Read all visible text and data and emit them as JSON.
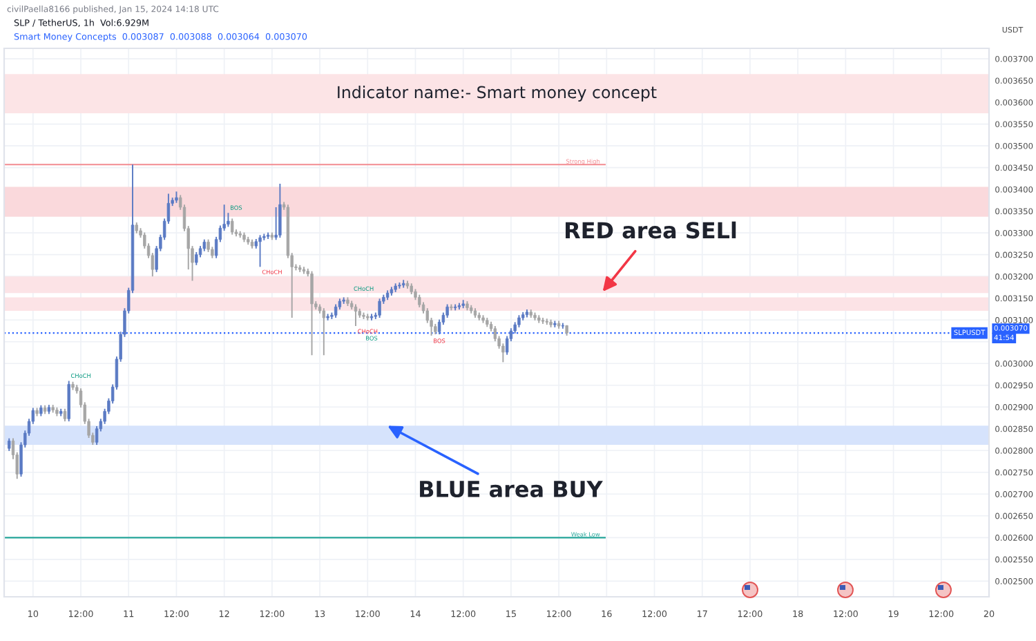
{
  "chart_data": {
    "type": "candlestick",
    "title": "SLP / TetherUS, 1h  Vol:6.929M",
    "subtitle": "Smart Money Concepts  0.003087  0.003088  0.003064  0.003070",
    "ylabel": "USDT",
    "x": [
      "2024-01-09T18:00",
      "2024-01-09T19:00",
      "2024-01-09T20:00",
      "2024-01-09T21:00",
      "2024-01-09T22:00",
      "2024-01-09T23:00",
      "2024-01-10T00:00",
      "2024-01-10T01:00",
      "2024-01-10T02:00",
      "2024-01-10T03:00",
      "2024-01-10T04:00",
      "2024-01-10T05:00",
      "2024-01-10T06:00",
      "2024-01-10T07:00",
      "2024-01-10T08:00",
      "2024-01-10T09:00",
      "2024-01-10T10:00",
      "2024-01-10T11:00",
      "2024-01-10T12:00",
      "2024-01-10T13:00",
      "2024-01-10T14:00",
      "2024-01-10T15:00",
      "2024-01-10T16:00",
      "2024-01-10T17:00",
      "2024-01-10T18:00",
      "2024-01-10T19:00",
      "2024-01-10T20:00",
      "2024-01-10T21:00",
      "2024-01-10T22:00",
      "2024-01-10T23:00",
      "2024-01-11T00:00",
      "2024-01-11T01:00",
      "2024-01-11T02:00",
      "2024-01-11T03:00",
      "2024-01-11T04:00",
      "2024-01-11T05:00",
      "2024-01-11T06:00",
      "2024-01-11T07:00",
      "2024-01-11T08:00",
      "2024-01-11T09:00",
      "2024-01-11T10:00",
      "2024-01-11T11:00",
      "2024-01-11T12:00",
      "2024-01-11T13:00",
      "2024-01-11T14:00",
      "2024-01-11T15:00",
      "2024-01-11T16:00",
      "2024-01-11T17:00",
      "2024-01-11T18:00",
      "2024-01-11T19:00",
      "2024-01-11T20:00",
      "2024-01-11T21:00",
      "2024-01-11T22:00",
      "2024-01-11T23:00",
      "2024-01-12T00:00",
      "2024-01-12T01:00",
      "2024-01-12T02:00",
      "2024-01-12T03:00",
      "2024-01-12T04:00",
      "2024-01-12T05:00",
      "2024-01-12T06:00",
      "2024-01-12T07:00",
      "2024-01-12T08:00",
      "2024-01-12T09:00",
      "2024-01-12T10:00",
      "2024-01-12T11:00",
      "2024-01-12T12:00",
      "2024-01-12T13:00",
      "2024-01-12T14:00",
      "2024-01-12T15:00",
      "2024-01-12T16:00",
      "2024-01-12T17:00",
      "2024-01-12T18:00",
      "2024-01-12T19:00",
      "2024-01-12T20:00",
      "2024-01-12T21:00",
      "2024-01-12T22:00",
      "2024-01-12T23:00",
      "2024-01-13T00:00",
      "2024-01-13T01:00",
      "2024-01-13T02:00",
      "2024-01-13T03:00",
      "2024-01-13T04:00",
      "2024-01-13T05:00",
      "2024-01-13T06:00",
      "2024-01-13T07:00",
      "2024-01-13T08:00",
      "2024-01-13T09:00",
      "2024-01-13T10:00",
      "2024-01-13T11:00",
      "2024-01-13T12:00",
      "2024-01-13T13:00",
      "2024-01-13T14:00",
      "2024-01-13T15:00",
      "2024-01-13T16:00",
      "2024-01-13T17:00",
      "2024-01-13T18:00",
      "2024-01-13T19:00",
      "2024-01-13T20:00",
      "2024-01-13T21:00",
      "2024-01-13T22:00",
      "2024-01-13T23:00",
      "2024-01-14T00:00",
      "2024-01-14T01:00",
      "2024-01-14T02:00",
      "2024-01-14T03:00",
      "2024-01-14T04:00",
      "2024-01-14T05:00",
      "2024-01-14T06:00",
      "2024-01-14T07:00",
      "2024-01-14T08:00",
      "2024-01-14T09:00",
      "2024-01-14T10:00",
      "2024-01-14T11:00",
      "2024-01-14T12:00",
      "2024-01-14T13:00",
      "2024-01-14T14:00",
      "2024-01-14T15:00",
      "2024-01-14T16:00",
      "2024-01-14T17:00",
      "2024-01-14T18:00",
      "2024-01-14T19:00",
      "2024-01-14T20:00",
      "2024-01-14T21:00",
      "2024-01-14T22:00",
      "2024-01-14T23:00",
      "2024-01-15T00:00",
      "2024-01-15T01:00",
      "2024-01-15T02:00",
      "2024-01-15T03:00",
      "2024-01-15T04:00",
      "2024-01-15T05:00",
      "2024-01-15T06:00",
      "2024-01-15T07:00",
      "2024-01-15T08:00",
      "2024-01-15T09:00",
      "2024-01-15T10:00",
      "2024-01-15T11:00",
      "2024-01-15T12:00",
      "2024-01-15T13:00",
      "2024-01-15T14:00"
    ],
    "ohlc": [
      [
        0.002805,
        0.002828,
        0.002799,
        0.002822
      ],
      [
        0.002822,
        0.002828,
        0.00278,
        0.00279
      ],
      [
        0.00279,
        0.002796,
        0.002735,
        0.002746
      ],
      [
        0.002746,
        0.002819,
        0.00274,
        0.002813
      ],
      [
        0.002813,
        0.002846,
        0.002807,
        0.00284
      ],
      [
        0.00284,
        0.002873,
        0.002834,
        0.002867
      ],
      [
        0.002867,
        0.002898,
        0.002861,
        0.002892
      ],
      [
        0.002892,
        0.002898,
        0.002879,
        0.002885
      ],
      [
        0.002885,
        0.002904,
        0.002879,
        0.002898
      ],
      [
        0.002898,
        0.002904,
        0.002884,
        0.00289
      ],
      [
        0.00289,
        0.002905,
        0.002884,
        0.002899
      ],
      [
        0.002899,
        0.002905,
        0.002887,
        0.002893
      ],
      [
        0.002893,
        0.002899,
        0.002879,
        0.002885
      ],
      [
        0.002885,
        0.002896,
        0.002879,
        0.00289
      ],
      [
        0.00289,
        0.002896,
        0.002867,
        0.002873
      ],
      [
        0.002873,
        0.00296,
        0.002867,
        0.002952
      ],
      [
        0.002952,
        0.002958,
        0.002939,
        0.002945
      ],
      [
        0.002945,
        0.002951,
        0.002931,
        0.002937
      ],
      [
        0.002937,
        0.002943,
        0.002899,
        0.002905
      ],
      [
        0.002905,
        0.002911,
        0.002861,
        0.002867
      ],
      [
        0.002867,
        0.002873,
        0.002829,
        0.002835
      ],
      [
        0.002835,
        0.002841,
        0.002813,
        0.002819
      ],
      [
        0.002819,
        0.002856,
        0.002813,
        0.00285
      ],
      [
        0.00285,
        0.002873,
        0.002844,
        0.002867
      ],
      [
        0.002867,
        0.002896,
        0.002861,
        0.00289
      ],
      [
        0.00289,
        0.00292,
        0.002884,
        0.002914
      ],
      [
        0.002914,
        0.002952,
        0.002908,
        0.002946
      ],
      [
        0.002946,
        0.003016,
        0.00294,
        0.00301
      ],
      [
        0.00301,
        0.003073,
        0.003004,
        0.003067
      ],
      [
        0.003067,
        0.003127,
        0.003061,
        0.003121
      ],
      [
        0.003121,
        0.003174,
        0.003115,
        0.003168
      ],
      [
        0.003168,
        0.003457,
        0.003162,
        0.003318
      ],
      [
        0.003318,
        0.003324,
        0.003299,
        0.003305
      ],
      [
        0.003305,
        0.003311,
        0.003289,
        0.003295
      ],
      [
        0.003295,
        0.003301,
        0.003264,
        0.00327
      ],
      [
        0.00327,
        0.003276,
        0.003242,
        0.003248
      ],
      [
        0.003248,
        0.003254,
        0.0032,
        0.003216
      ],
      [
        0.003216,
        0.00327,
        0.00321,
        0.003264
      ],
      [
        0.003264,
        0.003296,
        0.003258,
        0.00329
      ],
      [
        0.00329,
        0.003333,
        0.003284,
        0.003327
      ],
      [
        0.003327,
        0.00339,
        0.003321,
        0.003368
      ],
      [
        0.003368,
        0.003381,
        0.003362,
        0.003375
      ],
      [
        0.003375,
        0.003395,
        0.003369,
        0.003381
      ],
      [
        0.003381,
        0.003387,
        0.003353,
        0.003359
      ],
      [
        0.003359,
        0.003365,
        0.003304,
        0.00331
      ],
      [
        0.00331,
        0.003316,
        0.003216,
        0.003264
      ],
      [
        0.003264,
        0.00327,
        0.00319,
        0.003232
      ],
      [
        0.003232,
        0.003256,
        0.003226,
        0.00325
      ],
      [
        0.00325,
        0.00327,
        0.003244,
        0.003264
      ],
      [
        0.003264,
        0.003285,
        0.003258,
        0.003279
      ],
      [
        0.003279,
        0.003285,
        0.003256,
        0.003262
      ],
      [
        0.003262,
        0.003268,
        0.003242,
        0.003248
      ],
      [
        0.003248,
        0.003291,
        0.003242,
        0.003285
      ],
      [
        0.003285,
        0.003317,
        0.003279,
        0.003311
      ],
      [
        0.003311,
        0.003365,
        0.003305,
        0.00332
      ],
      [
        0.00332,
        0.003346,
        0.003314,
        0.003327
      ],
      [
        0.003327,
        0.003333,
        0.003296,
        0.003302
      ],
      [
        0.003302,
        0.003308,
        0.003292,
        0.003298
      ],
      [
        0.003298,
        0.003304,
        0.003289,
        0.003295
      ],
      [
        0.003295,
        0.003301,
        0.003279,
        0.003285
      ],
      [
        0.003285,
        0.003291,
        0.003273,
        0.003279
      ],
      [
        0.003279,
        0.003285,
        0.003264,
        0.00327
      ],
      [
        0.00327,
        0.003286,
        0.003264,
        0.00328
      ],
      [
        0.00328,
        0.003295,
        0.003222,
        0.003289
      ],
      [
        0.003289,
        0.003298,
        0.003283,
        0.003292
      ],
      [
        0.003292,
        0.003301,
        0.003286,
        0.003295
      ],
      [
        0.003295,
        0.003301,
        0.003284,
        0.00329
      ],
      [
        0.00329,
        0.003359,
        0.003284,
        0.003295
      ],
      [
        0.003295,
        0.003413,
        0.003289,
        0.003365
      ],
      [
        0.003365,
        0.003371,
        0.003353,
        0.003359
      ],
      [
        0.003359,
        0.003365,
        0.003242,
        0.003248
      ],
      [
        0.003248,
        0.003254,
        0.003105,
        0.003222
      ],
      [
        0.003222,
        0.003228,
        0.003214,
        0.00322
      ],
      [
        0.00322,
        0.003226,
        0.00321,
        0.003216
      ],
      [
        0.003216,
        0.003222,
        0.003206,
        0.003212
      ],
      [
        0.003212,
        0.003218,
        0.0032,
        0.003206
      ],
      [
        0.003206,
        0.003212,
        0.003019,
        0.003137
      ],
      [
        0.003137,
        0.003143,
        0.003124,
        0.00313
      ],
      [
        0.00313,
        0.003136,
        0.003115,
        0.003121
      ],
      [
        0.003121,
        0.003127,
        0.003019,
        0.003105
      ],
      [
        0.003105,
        0.003114,
        0.003099,
        0.003108
      ],
      [
        0.003108,
        0.003117,
        0.003102,
        0.003111
      ],
      [
        0.003111,
        0.003136,
        0.003105,
        0.00313
      ],
      [
        0.00313,
        0.003149,
        0.003124,
        0.003143
      ],
      [
        0.003143,
        0.003152,
        0.003137,
        0.003146
      ],
      [
        0.003146,
        0.003152,
        0.003132,
        0.003138
      ],
      [
        0.003138,
        0.003144,
        0.003124,
        0.00313
      ],
      [
        0.00313,
        0.003136,
        0.003086,
        0.00312
      ],
      [
        0.00312,
        0.003126,
        0.003105,
        0.003111
      ],
      [
        0.003111,
        0.003117,
        0.003102,
        0.003108
      ],
      [
        0.003108,
        0.003114,
        0.003099,
        0.003105
      ],
      [
        0.003105,
        0.003114,
        0.003099,
        0.003108
      ],
      [
        0.003108,
        0.003117,
        0.003102,
        0.003111
      ],
      [
        0.003111,
        0.003149,
        0.003105,
        0.003143
      ],
      [
        0.003143,
        0.003158,
        0.003137,
        0.003152
      ],
      [
        0.003152,
        0.003168,
        0.003146,
        0.003162
      ],
      [
        0.003162,
        0.003176,
        0.003156,
        0.00317
      ],
      [
        0.00317,
        0.003184,
        0.003164,
        0.003178
      ],
      [
        0.003178,
        0.003186,
        0.003172,
        0.00318
      ],
      [
        0.00318,
        0.003192,
        0.003174,
        0.003184
      ],
      [
        0.003184,
        0.00319,
        0.003172,
        0.003178
      ],
      [
        0.003178,
        0.003184,
        0.003159,
        0.003165
      ],
      [
        0.003165,
        0.003171,
        0.003146,
        0.003152
      ],
      [
        0.003152,
        0.003158,
        0.003129,
        0.003135
      ],
      [
        0.003135,
        0.003141,
        0.003115,
        0.003121
      ],
      [
        0.003121,
        0.003127,
        0.003093,
        0.003099
      ],
      [
        0.003099,
        0.003105,
        0.003064,
        0.003085
      ],
      [
        0.003085,
        0.003091,
        0.003067,
        0.003073
      ],
      [
        0.003073,
        0.003101,
        0.003067,
        0.003095
      ],
      [
        0.003095,
        0.003117,
        0.003089,
        0.003111
      ],
      [
        0.003111,
        0.003136,
        0.003105,
        0.00313
      ],
      [
        0.00313,
        0.003136,
        0.003122,
        0.003128
      ],
      [
        0.003128,
        0.003136,
        0.003122,
        0.00313
      ],
      [
        0.00313,
        0.003139,
        0.003124,
        0.003133
      ],
      [
        0.003133,
        0.003146,
        0.003127,
        0.003137
      ],
      [
        0.003137,
        0.003143,
        0.003122,
        0.003128
      ],
      [
        0.003128,
        0.003134,
        0.003115,
        0.003121
      ],
      [
        0.003121,
        0.003127,
        0.003105,
        0.003111
      ],
      [
        0.003111,
        0.003117,
        0.003099,
        0.003105
      ],
      [
        0.003105,
        0.003111,
        0.003093,
        0.003099
      ],
      [
        0.003099,
        0.003105,
        0.003084,
        0.00309
      ],
      [
        0.00309,
        0.003096,
        0.003074,
        0.00308
      ],
      [
        0.00308,
        0.003086,
        0.003051,
        0.003057
      ],
      [
        0.003057,
        0.003063,
        0.003034,
        0.00304
      ],
      [
        0.00304,
        0.003046,
        0.003003,
        0.003026
      ],
      [
        0.003026,
        0.003063,
        0.00302,
        0.003057
      ],
      [
        0.003057,
        0.003081,
        0.003051,
        0.003075
      ],
      [
        0.003075,
        0.003095,
        0.003069,
        0.003089
      ],
      [
        0.003089,
        0.003111,
        0.003083,
        0.003105
      ],
      [
        0.003105,
        0.003118,
        0.003099,
        0.003112
      ],
      [
        0.003112,
        0.003124,
        0.003106,
        0.003118
      ],
      [
        0.003118,
        0.003124,
        0.003105,
        0.003111
      ],
      [
        0.003111,
        0.003117,
        0.003099,
        0.003105
      ],
      [
        0.003105,
        0.003111,
        0.003093,
        0.003099
      ],
      [
        0.003099,
        0.003105,
        0.003091,
        0.003097
      ],
      [
        0.003097,
        0.003103,
        0.003089,
        0.003095
      ],
      [
        0.003095,
        0.003101,
        0.003083,
        0.003089
      ],
      [
        0.003089,
        0.003098,
        0.003083,
        0.003092
      ],
      [
        0.003092,
        0.003098,
        0.00308,
        0.003086
      ],
      [
        0.003086,
        0.003093,
        0.00308,
        0.003087
      ],
      [
        0.003087,
        0.003088,
        0.003064,
        0.00307
      ]
    ],
    "colors": [
      "#5b7bc4",
      "#a6a6a6",
      "#a6a6a6",
      "#5b7bc4",
      "#5b7bc4",
      "#5b7bc4",
      "#5b7bc4",
      "#a6a6a6",
      "#5b7bc4",
      "#a6a6a6",
      "#5b7bc4",
      "#a6a6a6",
      "#a6a6a6",
      "#5b7bc4",
      "#a6a6a6",
      "#5b7bc4",
      "#a6a6a6",
      "#a6a6a6",
      "#a6a6a6",
      "#a6a6a6",
      "#a6a6a6",
      "#a6a6a6",
      "#5b7bc4",
      "#5b7bc4",
      "#5b7bc4",
      "#5b7bc4",
      "#5b7bc4",
      "#5b7bc4",
      "#5b7bc4",
      "#5b7bc4",
      "#5b7bc4",
      "#5b7bc4",
      "#a6a6a6",
      "#a6a6a6",
      "#a6a6a6",
      "#a6a6a6",
      "#a6a6a6",
      "#5b7bc4",
      "#5b7bc4",
      "#5b7bc4",
      "#5b7bc4",
      "#5b7bc4",
      "#5b7bc4",
      "#a6a6a6",
      "#a6a6a6",
      "#a6a6a6",
      "#a6a6a6",
      "#5b7bc4",
      "#5b7bc4",
      "#5b7bc4",
      "#a6a6a6",
      "#a6a6a6",
      "#5b7bc4",
      "#5b7bc4",
      "#5b7bc4",
      "#5b7bc4",
      "#a6a6a6",
      "#a6a6a6",
      "#a6a6a6",
      "#a6a6a6",
      "#a6a6a6",
      "#a6a6a6",
      "#5b7bc4",
      "#5b7bc4",
      "#5b7bc4",
      "#5b7bc4",
      "#a6a6a6",
      "#5b7bc4",
      "#5b7bc4",
      "#a6a6a6",
      "#a6a6a6",
      "#a6a6a6",
      "#a6a6a6",
      "#a6a6a6",
      "#a6a6a6",
      "#a6a6a6",
      "#a6a6a6",
      "#a6a6a6",
      "#a6a6a6",
      "#a6a6a6",
      "#5b7bc4",
      "#5b7bc4",
      "#5b7bc4",
      "#5b7bc4",
      "#5b7bc4",
      "#a6a6a6",
      "#a6a6a6",
      "#a6a6a6",
      "#a6a6a6",
      "#a6a6a6",
      "#a6a6a6",
      "#5b7bc4",
      "#5b7bc4",
      "#5b7bc4",
      "#5b7bc4",
      "#5b7bc4",
      "#5b7bc4",
      "#5b7bc4",
      "#5b7bc4",
      "#5b7bc4",
      "#a6a6a6",
      "#a6a6a6",
      "#a6a6a6",
      "#a6a6a6",
      "#a6a6a6",
      "#a6a6a6",
      "#a6a6a6",
      "#a6a6a6",
      "#5b7bc4",
      "#5b7bc4",
      "#5b7bc4",
      "#a6a6a6",
      "#5b7bc4",
      "#5b7bc4",
      "#5b7bc4",
      "#a6a6a6",
      "#a6a6a6",
      "#a6a6a6",
      "#a6a6a6",
      "#a6a6a6",
      "#a6a6a6",
      "#a6a6a6",
      "#a6a6a6",
      "#a6a6a6",
      "#a6a6a6",
      "#5b7bc4",
      "#5b7bc4",
      "#5b7bc4",
      "#5b7bc4",
      "#5b7bc4",
      "#5b7bc4",
      "#a6a6a6",
      "#a6a6a6",
      "#a6a6a6",
      "#a6a6a6",
      "#a6a6a6",
      "#a6a6a6",
      "#5b7bc4",
      "#a6a6a6",
      "#5b7bc4",
      "#a6a6a6"
    ],
    "xlim": [
      "2024-01-09T16:45",
      "2024-01-20T00:00"
    ],
    "xticks": [
      {
        "value": "2024-01-10T00:00",
        "label": "10"
      },
      {
        "value": "2024-01-10T12:00",
        "label": "12:00"
      },
      {
        "value": "2024-01-11T00:00",
        "label": "11"
      },
      {
        "value": "2024-01-11T12:00",
        "label": "12:00"
      },
      {
        "value": "2024-01-12T00:00",
        "label": "12"
      },
      {
        "value": "2024-01-12T12:00",
        "label": "12:00"
      },
      {
        "value": "2024-01-13T00:00",
        "label": "13"
      },
      {
        "value": "2024-01-13T12:00",
        "label": "12:00"
      },
      {
        "value": "2024-01-14T00:00",
        "label": "14"
      },
      {
        "value": "2024-01-14T12:00",
        "label": "12:00"
      },
      {
        "value": "2024-01-15T00:00",
        "label": "15"
      },
      {
        "value": "2024-01-15T12:00",
        "label": "12:00"
      },
      {
        "value": "2024-01-16T00:00",
        "label": "16"
      },
      {
        "value": "2024-01-16T12:00",
        "label": "12:00"
      },
      {
        "value": "2024-01-17T00:00",
        "label": "17"
      },
      {
        "value": "2024-01-17T12:00",
        "label": "12:00"
      },
      {
        "value": "2024-01-18T00:00",
        "label": "18"
      },
      {
        "value": "2024-01-18T12:00",
        "label": "12:00"
      },
      {
        "value": "2024-01-19T00:00",
        "label": "19"
      },
      {
        "value": "2024-01-19T12:00",
        "label": "12:00"
      },
      {
        "value": "2024-01-20T00:00",
        "label": "20"
      }
    ],
    "ylim": [
      0.002464,
      0.003724
    ],
    "yticks": [
      {
        "value": 0.0025,
        "label": "0.002500"
      },
      {
        "value": 0.00255,
        "label": "0.002550"
      },
      {
        "value": 0.0026,
        "label": "0.002600"
      },
      {
        "value": 0.00265,
        "label": "0.002650"
      },
      {
        "value": 0.0027,
        "label": "0.002700"
      },
      {
        "value": 0.00275,
        "label": "0.002750"
      },
      {
        "value": 0.0028,
        "label": "0.002800"
      },
      {
        "value": 0.00285,
        "label": "0.002850"
      },
      {
        "value": 0.0029,
        "label": "0.002900"
      },
      {
        "value": 0.00295,
        "label": "0.002950"
      },
      {
        "value": 0.003,
        "label": "0.003000"
      },
      {
        "value": 0.00305,
        "label": null
      },
      {
        "value": 0.0031,
        "label": "0.003100"
      },
      {
        "value": 0.00315,
        "label": "0.003150"
      },
      {
        "value": 0.0032,
        "label": "0.003200"
      },
      {
        "value": 0.00325,
        "label": "0.003250"
      },
      {
        "value": 0.0033,
        "label": "0.003300"
      },
      {
        "value": 0.00335,
        "label": "0.003350"
      },
      {
        "value": 0.0034,
        "label": "0.003400"
      },
      {
        "value": 0.00345,
        "label": "0.003450"
      },
      {
        "value": 0.0035,
        "label": "0.003500"
      },
      {
        "value": 0.00355,
        "label": "0.003550"
      },
      {
        "value": 0.0036,
        "label": "0.003600"
      },
      {
        "value": 0.00365,
        "label": "0.003650"
      },
      {
        "value": 0.0037,
        "label": "0.003700"
      }
    ],
    "grid": true,
    "bands": [
      {
        "axis": "y",
        "from": 0.003575,
        "to": 0.003665,
        "label": "Indicator name:- Smart money concept",
        "color": "#fce4e6"
      },
      {
        "axis": "y",
        "from": 0.003337,
        "to": 0.003406,
        "color": "#fad9dc"
      },
      {
        "axis": "y",
        "from": 0.003162,
        "to": 0.0032,
        "color": "#fce3e6"
      },
      {
        "axis": "y",
        "from": 0.003121,
        "to": 0.003152,
        "color": "#fce3e6"
      },
      {
        "axis": "y",
        "from": 0.002813,
        "to": 0.002857,
        "color": "#d6e3fc"
      }
    ],
    "ref_lines": [
      {
        "axis": "y",
        "value": 0.003457,
        "label": "Strong High",
        "color": "#f28b91"
      },
      {
        "axis": "y",
        "value": 0.0026,
        "label": "Weak Low",
        "color": "#26a69a"
      },
      {
        "axis": "y",
        "value": 0.00307,
        "label": "0.003070",
        "color": "#2962ff",
        "line_style": "dotted"
      }
    ],
    "annotations": [
      "civilPaella8166 published, Jan 15, 2024 14:18 UTC",
      "SLPUSDT",
      "41:54",
      {
        "text": "RED area SELl",
        "x": "2024-01-15T23:00",
        "y": 0.003165
      },
      {
        "text": "BLUE area BUY",
        "x": "2024-01-13T17:00",
        "y": 0.002857
      },
      {
        "text": "CHoCH",
        "x": "2024-01-10T09:00",
        "y": 0.00296
      },
      {
        "text": "BOS",
        "x": "2024-01-12T01:00",
        "y": 0.003346
      },
      {
        "text": "CHoCH",
        "x": "2024-01-12T09:00",
        "y": 0.003222
      },
      {
        "text": "CHoCH",
        "x": "2024-01-13T08:00",
        "y": 0.00316
      },
      {
        "text": "BOS",
        "x": "2024-01-13T11:00",
        "y": 0.00307
      },
      {
        "text": "CHoCH",
        "x": "2024-01-13T09:00",
        "y": 0.003086
      },
      {
        "text": "BOS",
        "x": "2024-01-14T04:00",
        "y": 0.003064
      }
    ]
  }
}
